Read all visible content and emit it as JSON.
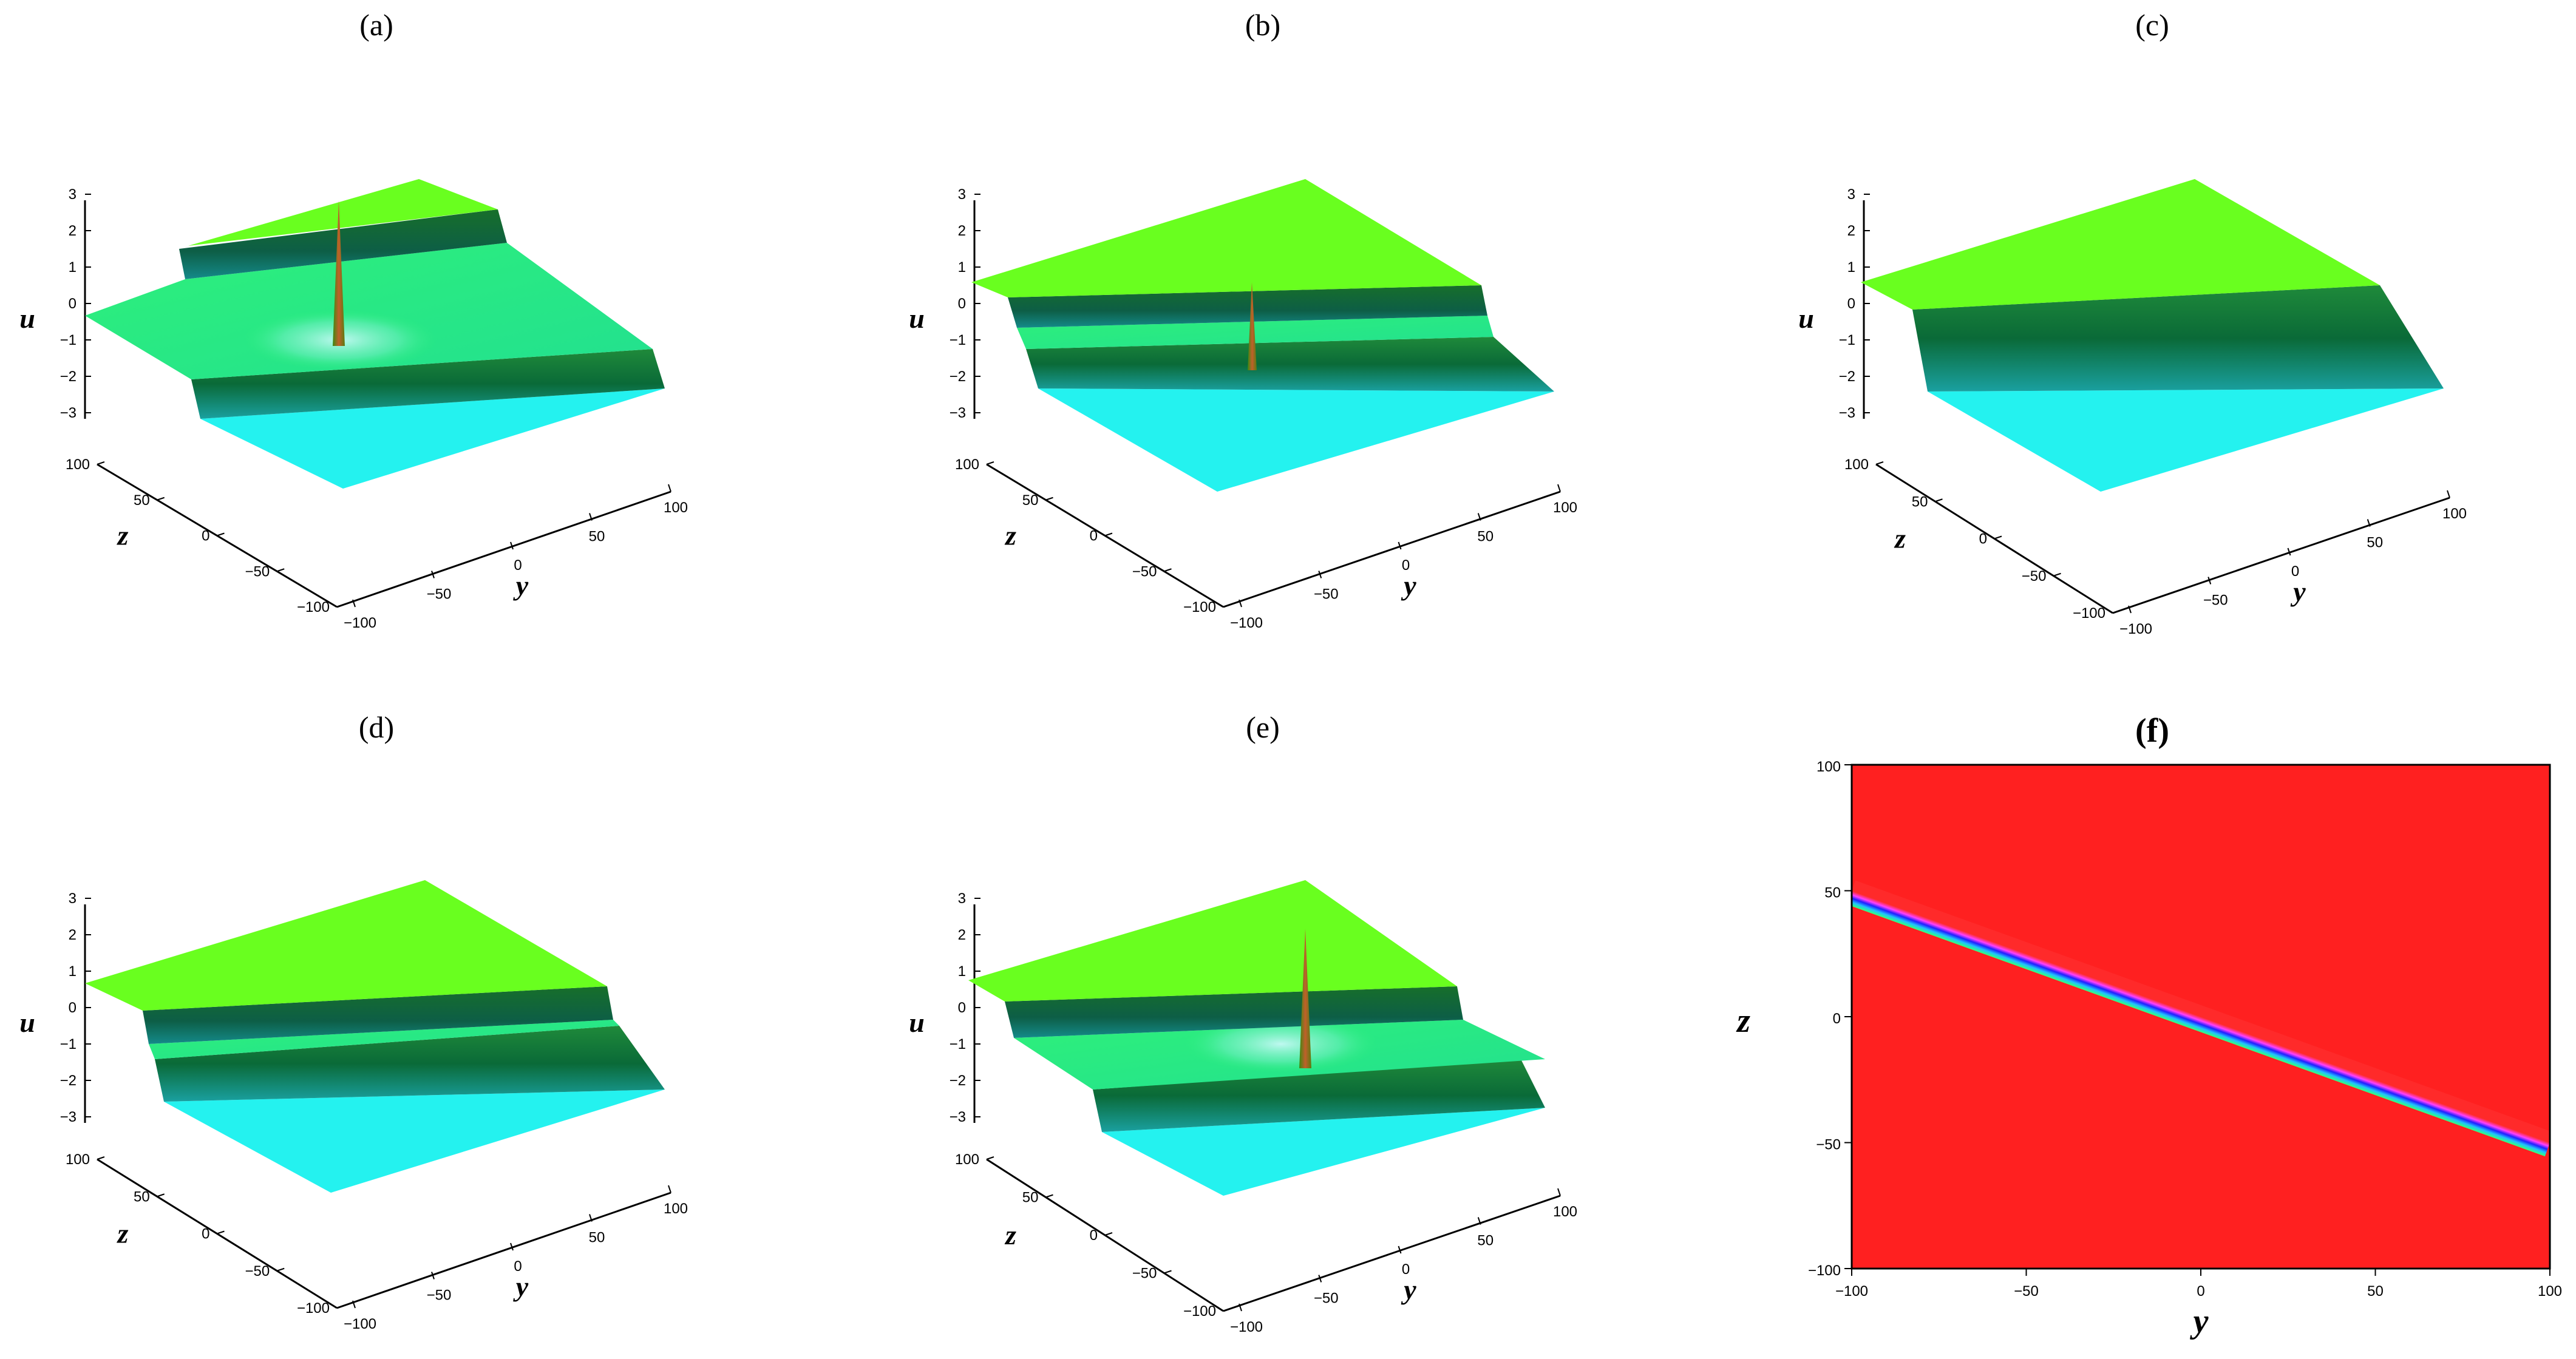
{
  "figure": {
    "panels": [
      {
        "id": "a",
        "label": "(a)",
        "type": "surface3d"
      },
      {
        "id": "b",
        "label": "(b)",
        "type": "surface3d"
      },
      {
        "id": "c",
        "label": "(c)",
        "type": "surface3d"
      },
      {
        "id": "d",
        "label": "(d)",
        "type": "surface3d"
      },
      {
        "id": "e",
        "label": "(e)",
        "type": "surface3d"
      },
      {
        "id": "f",
        "label": "(f)",
        "type": "heatmap"
      }
    ]
  },
  "colors": {
    "high_plateau": "#66ff22",
    "wall": "#0a6a3a",
    "low_plateau": "#22f0f0",
    "peak": "#a05a10",
    "heatmap_background": "#ff2020"
  },
  "chart_data": [
    {
      "panel": "(a)",
      "type": "surface",
      "axes": {
        "x": "y",
        "y": "z",
        "z": "u"
      },
      "xlim": [
        -100,
        100
      ],
      "ylim": [
        -100,
        100
      ],
      "zlim": [
        -3,
        3
      ],
      "x_ticks": [
        "−100",
        "−50",
        "0",
        "50",
        "100"
      ],
      "y_ticks": [
        "−100",
        "−50",
        "0",
        "50",
        "100"
      ],
      "u_ticks": [
        "−3",
        "−2",
        "−1",
        "0",
        "1",
        "2",
        "3"
      ],
      "plateaus": [
        2,
        0,
        -3
      ],
      "peak": {
        "y": 0,
        "z": 0,
        "u": 3
      }
    },
    {
      "panel": "(b)",
      "type": "surface",
      "axes": {
        "x": "y",
        "y": "z",
        "z": "u"
      },
      "xlim": [
        -100,
        100
      ],
      "ylim": [
        -100,
        100
      ],
      "zlim": [
        -3,
        3
      ],
      "x_ticks": [
        "−100",
        "−50",
        "0",
        "50",
        "100"
      ],
      "y_ticks": [
        "−100",
        "−50",
        "0",
        "50",
        "100"
      ],
      "u_ticks": [
        "−3",
        "−2",
        "−1",
        "0",
        "1",
        "2",
        "3"
      ],
      "plateaus": [
        1,
        -1,
        -2
      ],
      "peak": {
        "y": 0,
        "z": 0,
        "u": 1
      }
    },
    {
      "panel": "(c)",
      "type": "surface",
      "axes": {
        "x": "y",
        "y": "z",
        "z": "u"
      },
      "xlim": [
        -100,
        100
      ],
      "ylim": [
        -100,
        100
      ],
      "zlim": [
        -3,
        3
      ],
      "x_ticks": [
        "−100",
        "−50",
        "0",
        "50",
        "100"
      ],
      "y_ticks": [
        "−100",
        "−50",
        "0",
        "50",
        "100"
      ],
      "u_ticks": [
        "−3",
        "−2",
        "−1",
        "0",
        "1",
        "2",
        "3"
      ],
      "plateaus": [
        1,
        -2
      ]
    },
    {
      "panel": "(d)",
      "type": "surface",
      "axes": {
        "x": "y",
        "y": "z",
        "z": "u"
      },
      "xlim": [
        -100,
        100
      ],
      "ylim": [
        -100,
        100
      ],
      "zlim": [
        -3,
        3
      ],
      "x_ticks": [
        "−100",
        "−50",
        "0",
        "50",
        "100"
      ],
      "y_ticks": [
        "−100",
        "−50",
        "0",
        "50",
        "100"
      ],
      "u_ticks": [
        "−3",
        "−2",
        "−1",
        "0",
        "1",
        "2",
        "3"
      ],
      "plateaus": [
        1,
        -0.5,
        -2
      ]
    },
    {
      "panel": "(e)",
      "type": "surface",
      "axes": {
        "x": "y",
        "y": "z",
        "z": "u"
      },
      "xlim": [
        -100,
        100
      ],
      "ylim": [
        -100,
        100
      ],
      "zlim": [
        -3,
        3
      ],
      "x_ticks": [
        "−100",
        "−50",
        "0",
        "50",
        "100"
      ],
      "y_ticks": [
        "−100",
        "−50",
        "0",
        "50",
        "100"
      ],
      "u_ticks": [
        "−3",
        "−2",
        "−1",
        "0",
        "1",
        "2",
        "3"
      ],
      "plateaus": [
        1,
        -1,
        -3
      ],
      "peak": {
        "y": 0,
        "z": 0,
        "u": 2
      }
    },
    {
      "panel": "(f)",
      "type": "heatmap",
      "xlabel": "y",
      "ylabel": "z",
      "xlim": [
        -100,
        100
      ],
      "ylim": [
        -100,
        100
      ],
      "x_ticks": [
        "−100",
        "−50",
        "0",
        "50",
        "100"
      ],
      "y_ticks": [
        "−100",
        "−50",
        "0",
        "50",
        "100"
      ],
      "band": {
        "from": {
          "y": -100,
          "z": 50
        },
        "to": {
          "y": 100,
          "z": -50
        }
      }
    }
  ]
}
